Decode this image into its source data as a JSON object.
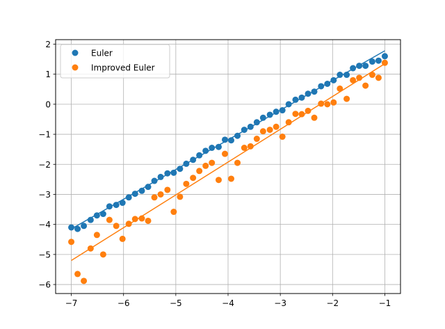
{
  "chart_data": {
    "type": "scatter",
    "title": "",
    "xlabel": "",
    "ylabel": "",
    "xlim": [
      -7.3,
      -0.7
    ],
    "ylim": [
      -6.3,
      2.15
    ],
    "xticks": [
      -7,
      -6,
      -5,
      -4,
      -3,
      -2,
      -1
    ],
    "xtick_labels": [
      "−7",
      "−6",
      "−5",
      "−4",
      "−3",
      "−2",
      "−1"
    ],
    "yticks": [
      -6,
      -5,
      -4,
      -3,
      -2,
      -1,
      0,
      1,
      2
    ],
    "ytick_labels": [
      "−6",
      "−5",
      "−4",
      "−3",
      "−2",
      "−1",
      "0",
      "1",
      "2"
    ],
    "grid": true,
    "legend_position": "upper-left",
    "series": [
      {
        "name": "Euler",
        "color": "#1f77b4",
        "x": [
          -7.0,
          -6.88,
          -6.76,
          -6.63,
          -6.51,
          -6.39,
          -6.27,
          -6.14,
          -6.02,
          -5.9,
          -5.78,
          -5.65,
          -5.53,
          -5.41,
          -5.29,
          -5.16,
          -5.04,
          -4.92,
          -4.8,
          -4.67,
          -4.55,
          -4.43,
          -4.31,
          -4.18,
          -4.06,
          -3.94,
          -3.82,
          -3.69,
          -3.57,
          -3.45,
          -3.33,
          -3.2,
          -3.08,
          -2.96,
          -2.84,
          -2.71,
          -2.59,
          -2.47,
          -2.35,
          -2.22,
          -2.1,
          -1.98,
          -1.86,
          -1.73,
          -1.61,
          -1.49,
          -1.37,
          -1.24,
          -1.12,
          -1.0
        ],
        "y": [
          -4.1,
          -4.15,
          -4.05,
          -3.85,
          -3.7,
          -3.65,
          -3.4,
          -3.35,
          -3.28,
          -3.1,
          -2.98,
          -2.88,
          -2.75,
          -2.55,
          -2.42,
          -2.3,
          -2.28,
          -2.15,
          -1.98,
          -1.85,
          -1.7,
          -1.55,
          -1.45,
          -1.42,
          -1.18,
          -1.2,
          -1.05,
          -0.85,
          -0.75,
          -0.6,
          -0.45,
          -0.35,
          -0.25,
          -0.2,
          0.0,
          0.15,
          0.22,
          0.35,
          0.42,
          0.6,
          0.68,
          0.8,
          0.98,
          0.98,
          1.2,
          1.28,
          1.28,
          1.42,
          1.45,
          1.6
        ],
        "fit_line": {
          "x": [
            -7.0,
            -1.0
          ],
          "y": [
            -4.15,
            1.78
          ]
        }
      },
      {
        "name": "Improved Euler",
        "color": "#ff7f0e",
        "x": [
          -7.0,
          -6.88,
          -6.76,
          -6.63,
          -6.51,
          -6.39,
          -6.27,
          -6.14,
          -6.02,
          -5.9,
          -5.78,
          -5.65,
          -5.53,
          -5.41,
          -5.29,
          -5.16,
          -5.04,
          -4.92,
          -4.8,
          -4.67,
          -4.55,
          -4.43,
          -4.31,
          -4.18,
          -4.06,
          -3.94,
          -3.82,
          -3.69,
          -3.57,
          -3.45,
          -3.33,
          -3.2,
          -3.08,
          -2.96,
          -2.84,
          -2.71,
          -2.59,
          -2.47,
          -2.35,
          -2.22,
          -2.1,
          -1.98,
          -1.86,
          -1.73,
          -1.61,
          -1.49,
          -1.37,
          -1.24,
          -1.12,
          -1.0
        ],
        "y": [
          -4.58,
          -5.65,
          -5.88,
          -4.8,
          -4.35,
          -5.0,
          -3.85,
          -4.05,
          -4.48,
          -3.98,
          -3.82,
          -3.8,
          -3.88,
          -3.1,
          -3.0,
          -2.85,
          -3.58,
          -3.08,
          -2.65,
          -2.45,
          -2.22,
          -2.05,
          -1.95,
          -2.52,
          -1.65,
          -2.48,
          -1.95,
          -1.45,
          -1.4,
          -1.15,
          -0.9,
          -0.85,
          -0.75,
          -1.08,
          -0.6,
          -0.32,
          -0.33,
          -0.22,
          -0.45,
          0.02,
          0.0,
          0.06,
          0.52,
          0.18,
          0.8,
          0.88,
          0.62,
          0.98,
          0.88,
          1.38
        ],
        "fit_line": {
          "x": [
            -7.0,
            -1.0
          ],
          "y": [
            -5.2,
            1.35
          ]
        }
      }
    ]
  }
}
